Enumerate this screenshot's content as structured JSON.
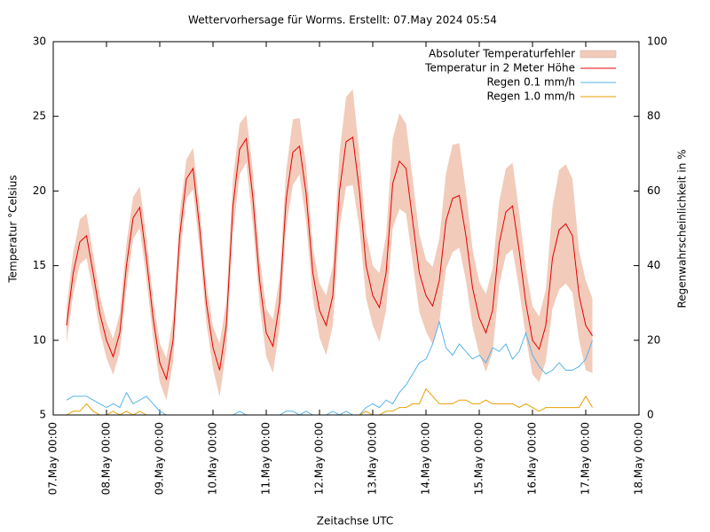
{
  "chart_data": {
    "type": "line",
    "title": "Wettervorhersage für Worms. Erstellt: 07.May 2024 05:54",
    "x_label": "Zeitachse UTC",
    "y_label": "Temperatur °Celsius",
    "y2_label": "Regenwahrscheinlichkeit in %",
    "xlim": [
      "2024-05-07 00:00",
      "2024-05-18 00:00"
    ],
    "xticks": [
      {
        "value": "2024-05-07 00:00",
        "label": "07.May 00:00"
      },
      {
        "value": "2024-05-08 00:00",
        "label": "08.May 00:00"
      },
      {
        "value": "2024-05-09 00:00",
        "label": "09.May 00:00"
      },
      {
        "value": "2024-05-10 00:00",
        "label": "10.May 00:00"
      },
      {
        "value": "2024-05-11 00:00",
        "label": "11.May 00:00"
      },
      {
        "value": "2024-05-12 00:00",
        "label": "12.May 00:00"
      },
      {
        "value": "2024-05-13 00:00",
        "label": "13.May 00:00"
      },
      {
        "value": "2024-05-14 00:00",
        "label": "14.May 00:00"
      },
      {
        "value": "2024-05-15 00:00",
        "label": "15.May 00:00"
      },
      {
        "value": "2024-05-16 00:00",
        "label": "16.May 00:00"
      },
      {
        "value": "2024-05-17 00:00",
        "label": "17.May 00:00"
      },
      {
        "value": "2024-05-18 00:00",
        "label": "18.May 00:00"
      }
    ],
    "ylim": [
      5,
      30
    ],
    "yticks": [
      5,
      10,
      15,
      20,
      25,
      30
    ],
    "y2lim": [
      0,
      100
    ],
    "y2ticks": [
      0,
      20,
      40,
      60,
      80,
      100
    ],
    "legend": "top-right",
    "x": [
      "2024-05-07 06:00",
      "2024-05-07 09:00",
      "2024-05-07 12:00",
      "2024-05-07 15:00",
      "2024-05-07 18:00",
      "2024-05-07 21:00",
      "2024-05-08 00:00",
      "2024-05-08 03:00",
      "2024-05-08 06:00",
      "2024-05-08 09:00",
      "2024-05-08 12:00",
      "2024-05-08 15:00",
      "2024-05-08 18:00",
      "2024-05-08 21:00",
      "2024-05-09 00:00",
      "2024-05-09 03:00",
      "2024-05-09 06:00",
      "2024-05-09 09:00",
      "2024-05-09 12:00",
      "2024-05-09 15:00",
      "2024-05-09 18:00",
      "2024-05-09 21:00",
      "2024-05-10 00:00",
      "2024-05-10 03:00",
      "2024-05-10 06:00",
      "2024-05-10 09:00",
      "2024-05-10 12:00",
      "2024-05-10 15:00",
      "2024-05-10 18:00",
      "2024-05-10 21:00",
      "2024-05-11 00:00",
      "2024-05-11 03:00",
      "2024-05-11 06:00",
      "2024-05-11 09:00",
      "2024-05-11 12:00",
      "2024-05-11 15:00",
      "2024-05-11 18:00",
      "2024-05-11 21:00",
      "2024-05-12 00:00",
      "2024-05-12 03:00",
      "2024-05-12 06:00",
      "2024-05-12 09:00",
      "2024-05-12 12:00",
      "2024-05-12 15:00",
      "2024-05-12 18:00",
      "2024-05-12 21:00",
      "2024-05-13 00:00",
      "2024-05-13 03:00",
      "2024-05-13 06:00",
      "2024-05-13 09:00",
      "2024-05-13 12:00",
      "2024-05-13 15:00",
      "2024-05-13 18:00",
      "2024-05-13 21:00",
      "2024-05-14 00:00",
      "2024-05-14 03:00",
      "2024-05-14 06:00",
      "2024-05-14 09:00",
      "2024-05-14 12:00",
      "2024-05-14 15:00",
      "2024-05-14 18:00",
      "2024-05-14 21:00",
      "2024-05-15 00:00",
      "2024-05-15 03:00",
      "2024-05-15 06:00",
      "2024-05-15 09:00",
      "2024-05-15 12:00",
      "2024-05-15 15:00",
      "2024-05-15 18:00",
      "2024-05-15 21:00",
      "2024-05-16 00:00",
      "2024-05-16 03:00",
      "2024-05-16 06:00",
      "2024-05-16 09:00",
      "2024-05-16 12:00",
      "2024-05-16 15:00",
      "2024-05-16 18:00",
      "2024-05-16 21:00",
      "2024-05-17 00:00",
      "2024-05-17 03:00"
    ],
    "series": [
      {
        "name": "Absoluter Temperaturfehler",
        "style": "band",
        "color": "#f2cbbb",
        "values": [
          1.2,
          1.4,
          1.5,
          1.5,
          1.3,
          1.2,
          1.2,
          1.2,
          1.3,
          1.5,
          1.4,
          1.4,
          1.4,
          1.3,
          1.3,
          1.4,
          1.5,
          1.5,
          1.3,
          1.4,
          1.4,
          1.3,
          1.4,
          1.8,
          1.6,
          1.8,
          1.7,
          1.6,
          1.8,
          1.6,
          1.6,
          1.8,
          1.7,
          1.9,
          2.2,
          1.9,
          1.9,
          1.7,
          1.8,
          2.0,
          2.0,
          2.5,
          3.0,
          3.2,
          2.5,
          2.2,
          2.0,
          2.3,
          2.5,
          3.0,
          3.2,
          3.0,
          2.8,
          2.6,
          2.4,
          2.6,
          2.8,
          3.2,
          3.6,
          3.5,
          3.0,
          2.6,
          2.4,
          2.6,
          2.8,
          2.8,
          2.9,
          2.9,
          2.6,
          2.3,
          2.3,
          2.2,
          2.4,
          3.4,
          4.0,
          4.0,
          3.8,
          3.0,
          3.0,
          2.5
        ]
      },
      {
        "name": "Temperatur in 2 Meter Höhe",
        "style": "line",
        "color": "#e50000",
        "values": [
          11.0,
          14.5,
          16.6,
          17.0,
          14.5,
          11.8,
          10.0,
          8.9,
          10.5,
          15.0,
          18.2,
          18.9,
          15.5,
          11.5,
          8.5,
          7.4,
          10.0,
          17.0,
          20.8,
          21.5,
          17.5,
          12.5,
          9.5,
          8.0,
          11.0,
          19.0,
          22.8,
          23.5,
          19.5,
          14.0,
          10.5,
          9.6,
          12.5,
          19.5,
          22.6,
          23.0,
          19.8,
          14.5,
          12.0,
          11.0,
          13.0,
          20.0,
          23.3,
          23.6,
          20.0,
          15.0,
          13.0,
          12.2,
          14.5,
          20.5,
          22.0,
          21.5,
          18.0,
          14.5,
          13.0,
          12.3,
          14.0,
          18.0,
          19.5,
          19.7,
          17.0,
          13.5,
          11.5,
          10.5,
          12.0,
          16.5,
          18.6,
          19.0,
          16.0,
          12.5,
          10.0,
          9.4,
          11.0,
          15.5,
          17.4,
          17.8,
          17.0,
          13.0,
          11.0,
          10.3
        ]
      },
      {
        "name": "Regen 0.1 mm/h",
        "style": "line",
        "axis": "y2",
        "color": "#56b4e9",
        "values": [
          4,
          5,
          5,
          5,
          4,
          3,
          2,
          3,
          2,
          6,
          3,
          4,
          5,
          3,
          1,
          0,
          0,
          0,
          0,
          0,
          0,
          0,
          0,
          0,
          0,
          0,
          1,
          0,
          0,
          0,
          0,
          0,
          0,
          1,
          1,
          0,
          1,
          0,
          0,
          0,
          1,
          0,
          1,
          0,
          0,
          2,
          3,
          2,
          4,
          3,
          6,
          8,
          11,
          14,
          15,
          19,
          25,
          18,
          16,
          19,
          17,
          15,
          16,
          14,
          18,
          17,
          19,
          15,
          17,
          22,
          16,
          13,
          11,
          12,
          14,
          12,
          12,
          13,
          15,
          20
        ]
      },
      {
        "name": "Regen 1.0 mm/h",
        "style": "line",
        "axis": "y2",
        "color": "#e69f00",
        "values": [
          0,
          1,
          1,
          3,
          1,
          0,
          0,
          1,
          0,
          1,
          0,
          1,
          0,
          0,
          0,
          0,
          0,
          0,
          0,
          0,
          0,
          0,
          0,
          0,
          0,
          0,
          0,
          0,
          0,
          0,
          0,
          0,
          0,
          0,
          0,
          0,
          0,
          0,
          0,
          0,
          0,
          0,
          0,
          0,
          0,
          1,
          0,
          0,
          1,
          1,
          2,
          2,
          3,
          3,
          7,
          5,
          3,
          3,
          3,
          4,
          4,
          3,
          3,
          4,
          3,
          3,
          3,
          3,
          2,
          3,
          2,
          1,
          2,
          2,
          2,
          2,
          2,
          2,
          5,
          2
        ]
      }
    ]
  }
}
